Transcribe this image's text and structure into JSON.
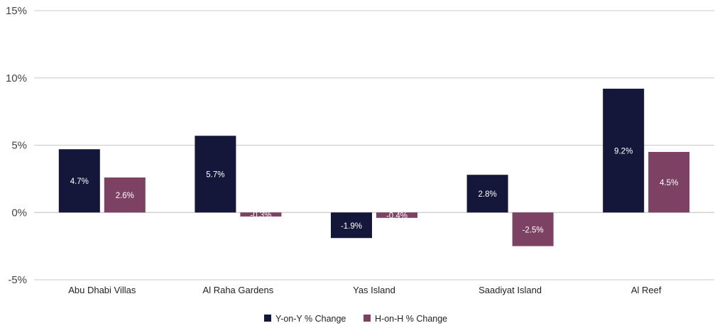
{
  "chart_data": {
    "type": "bar",
    "categories": [
      "Abu Dhabi Villas",
      "Al Raha Gardens",
      "Yas Island",
      "Saadiyat Island",
      "Al Reef"
    ],
    "series": [
      {
        "name": "Y-on-Y % Change",
        "values": [
          4.7,
          5.7,
          -1.9,
          2.8,
          9.2
        ],
        "labels": [
          "4.7%",
          "5.7%",
          "-1.9%",
          "2.8%",
          "9.2%"
        ],
        "color": "#15173a"
      },
      {
        "name": "H-on-H % Change",
        "values": [
          2.6,
          -0.3,
          -0.4,
          -2.5,
          4.5
        ],
        "labels": [
          "2.6%",
          "-0.3%",
          "-0.4%",
          "-2.5%",
          "4.5%"
        ],
        "color": "#7d4163"
      }
    ],
    "yticks": [
      15,
      10,
      5,
      0,
      -5
    ],
    "ytick_labels": [
      "15%",
      "10%",
      "5%",
      "0%",
      "-5%"
    ],
    "ylim": [
      -5,
      15
    ],
    "grid": true,
    "legend_position": "bottom-center",
    "title": "",
    "xlabel": "",
    "ylabel": ""
  }
}
